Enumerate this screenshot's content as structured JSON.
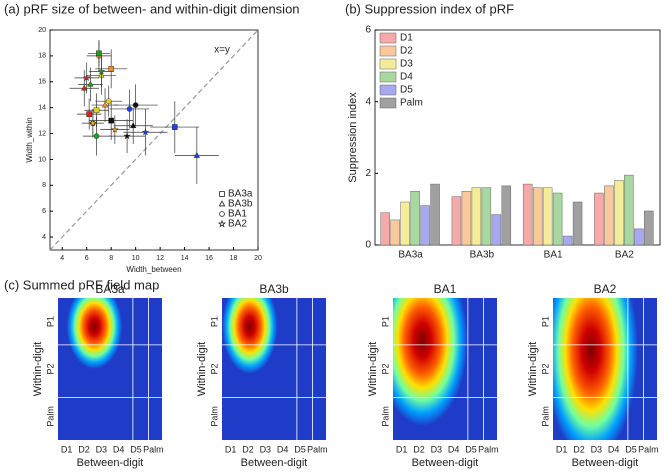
{
  "chart_data": [
    {
      "type": "scatter",
      "title": "(a) pRF size of between- and within-digit dimension",
      "xlabel": "Width_between",
      "ylabel": "Width_within",
      "annotation": "x=y",
      "xlim": [
        3,
        20
      ],
      "xticks": [
        4,
        6,
        8,
        10,
        12,
        14,
        16,
        18,
        20
      ],
      "ylim": [
        3,
        20
      ],
      "yticks": [
        4,
        6,
        8,
        10,
        12,
        14,
        16,
        18,
        20
      ],
      "legend": [
        {
          "label": "BA3a",
          "marker": "square"
        },
        {
          "label": "BA3b",
          "marker": "triangle"
        },
        {
          "label": "BA1",
          "marker": "circle"
        },
        {
          "label": "BA2",
          "marker": "star"
        }
      ],
      "series": [
        {
          "color": "#e02020",
          "x": [
            6.2,
            5.8,
            6.5,
            6.0
          ],
          "values": [
            13.5,
            15.5,
            12.8,
            16.3
          ],
          "x_errors": [
            1.0,
            1.2,
            0.9,
            1.0
          ],
          "y_errors": [
            1.2,
            1.4,
            1.0,
            1.2
          ]
        },
        {
          "color": "#f09020",
          "x": [
            8.0,
            7.5,
            7.0,
            8.3
          ],
          "values": [
            17.0,
            14.2,
            18.0,
            12.3
          ],
          "x_errors": [
            1.3,
            1.1,
            1.0,
            1.2
          ],
          "y_errors": [
            1.5,
            1.3,
            1.2,
            1.1
          ]
        },
        {
          "color": "#e8d020",
          "x": [
            6.8,
            7.2,
            7.8,
            6.5
          ],
          "values": [
            13.8,
            16.5,
            14.5,
            12.8
          ],
          "x_errors": [
            1.0,
            1.2,
            1.1,
            0.9
          ],
          "y_errors": [
            1.3,
            1.5,
            1.2,
            1.1
          ]
        },
        {
          "color": "#20a020",
          "x": [
            7.0,
            6.3,
            6.8,
            7.2
          ],
          "values": [
            18.2,
            15.8,
            11.8,
            16.8
          ],
          "x_errors": [
            0.9,
            1.0,
            1.1,
            1.0
          ],
          "y_errors": [
            1.0,
            1.3,
            1.5,
            1.2
          ]
        },
        {
          "color": "#2040e0",
          "x": [
            13.2,
            15.0,
            9.5,
            10.8
          ],
          "values": [
            12.5,
            10.3,
            13.9,
            12.1
          ],
          "x_errors": [
            2.0,
            1.8,
            1.6,
            1.8
          ],
          "y_errors": [
            2.0,
            2.2,
            1.5,
            1.8
          ]
        },
        {
          "color": "#111111",
          "x": [
            8.0,
            9.8,
            10.0,
            9.3
          ],
          "values": [
            13.0,
            12.6,
            14.2,
            11.8
          ],
          "x_errors": [
            1.8,
            1.6,
            1.8,
            1.5
          ],
          "y_errors": [
            1.5,
            1.4,
            1.6,
            1.3
          ]
        }
      ]
    },
    {
      "type": "bar",
      "title": "(b) Suppression index of pRF",
      "ylabel": "Suppression index",
      "categories": [
        "BA3a",
        "BA3b",
        "BA1",
        "BA2"
      ],
      "ylim": [
        0,
        6
      ],
      "yticks": [
        0,
        2,
        4,
        6
      ],
      "legend": "upper left",
      "series": [
        {
          "name": "D1",
          "color": "#f7a8a8",
          "values": [
            0.9,
            1.35,
            1.7,
            1.45
          ]
        },
        {
          "name": "D2",
          "color": "#f9c89b",
          "values": [
            0.7,
            1.5,
            1.6,
            1.65
          ]
        },
        {
          "name": "D3",
          "color": "#f5ec9a",
          "values": [
            1.2,
            1.6,
            1.6,
            1.8
          ]
        },
        {
          "name": "D4",
          "color": "#a8d8a0",
          "values": [
            1.5,
            1.6,
            1.45,
            1.95
          ]
        },
        {
          "name": "D5",
          "color": "#a8a8f0",
          "values": [
            1.1,
            0.85,
            0.25,
            0.45
          ]
        },
        {
          "name": "Palm",
          "color": "#a0a0a0",
          "values": [
            1.7,
            1.65,
            1.2,
            0.95
          ]
        }
      ]
    },
    {
      "type": "heatmap",
      "title": "(c) Summed pRF field map",
      "xlabel": "Between-digit",
      "ylabel": "Within-digit",
      "categories": [
        "D1",
        "D2",
        "D3",
        "D4",
        "D5",
        "Palm"
      ],
      "y_categories": [
        "P1",
        "P2",
        "Palm"
      ],
      "panels": [
        {
          "title": "BA3a",
          "peak_x": 1.6,
          "peak_y": 0.1,
          "spread_x": 1.6,
          "spread_y": 0.9
        },
        {
          "title": "BA3b",
          "peak_x": 1.1,
          "peak_y": 0.1,
          "spread_x": 1.6,
          "spread_y": 1.0
        },
        {
          "title": "BA1",
          "peak_x": 1.2,
          "peak_y": 0.4,
          "spread_x": 2.6,
          "spread_y": 1.8
        },
        {
          "title": "BA2",
          "peak_x": 1.7,
          "peak_y": 0.6,
          "spread_x": 2.7,
          "spread_y": 2.3
        }
      ]
    }
  ]
}
